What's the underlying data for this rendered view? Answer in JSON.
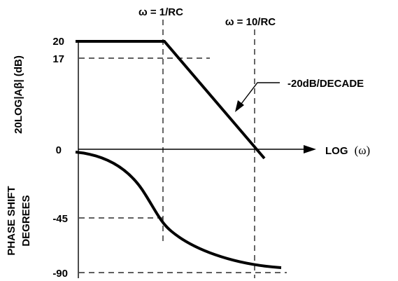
{
  "diagram": {
    "marker_w1": "ω = 1/RC",
    "marker_w10": "ω = 10/RC",
    "gain_axis_label": "20LOG|Aβ| (dB)",
    "phase_axis_label_line1": "PHASE SHIFT",
    "phase_axis_label_line2": "DEGREES",
    "gain_ticks": [
      "20",
      "17",
      "0"
    ],
    "phase_ticks": [
      "-45",
      "-90"
    ],
    "slope_label": "-20dB/DECADE",
    "x_axis_label": "LOG",
    "x_axis_label_var": "(ω)"
  },
  "colors": {
    "ink": "#000000",
    "background": "#ffffff"
  }
}
